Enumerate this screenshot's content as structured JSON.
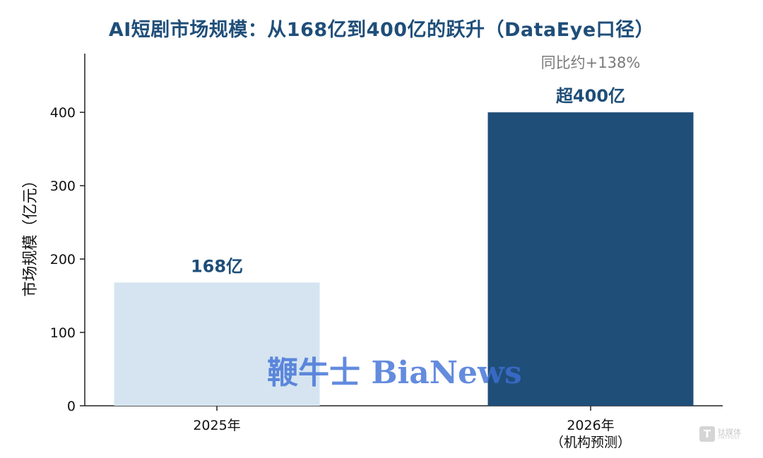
{
  "chart_data": {
    "type": "bar",
    "title": "AI短剧市场规模：从168亿到400亿的跃升（DataEye口径）",
    "ylabel": "市场规模（亿元）",
    "xlabel": "",
    "categories": [
      {
        "line1": "2025年",
        "line2": ""
      },
      {
        "line1": "2026年",
        "line2": "（机构预测）"
      }
    ],
    "values": [
      168,
      400
    ],
    "bar_labels": [
      "168亿",
      "超400亿"
    ],
    "bar_colors": [
      "#d5e4f0",
      "#1f4e79"
    ],
    "annotation": "同比约+138%",
    "ylim": [
      0,
      480
    ],
    "yticks": [
      0,
      100,
      200,
      300,
      400
    ],
    "grid": false
  },
  "watermark": "鞭牛士 BiaNews",
  "corner_logo": {
    "mark": "T",
    "text": "钛媒体",
    "sub": "TMTPOST"
  }
}
